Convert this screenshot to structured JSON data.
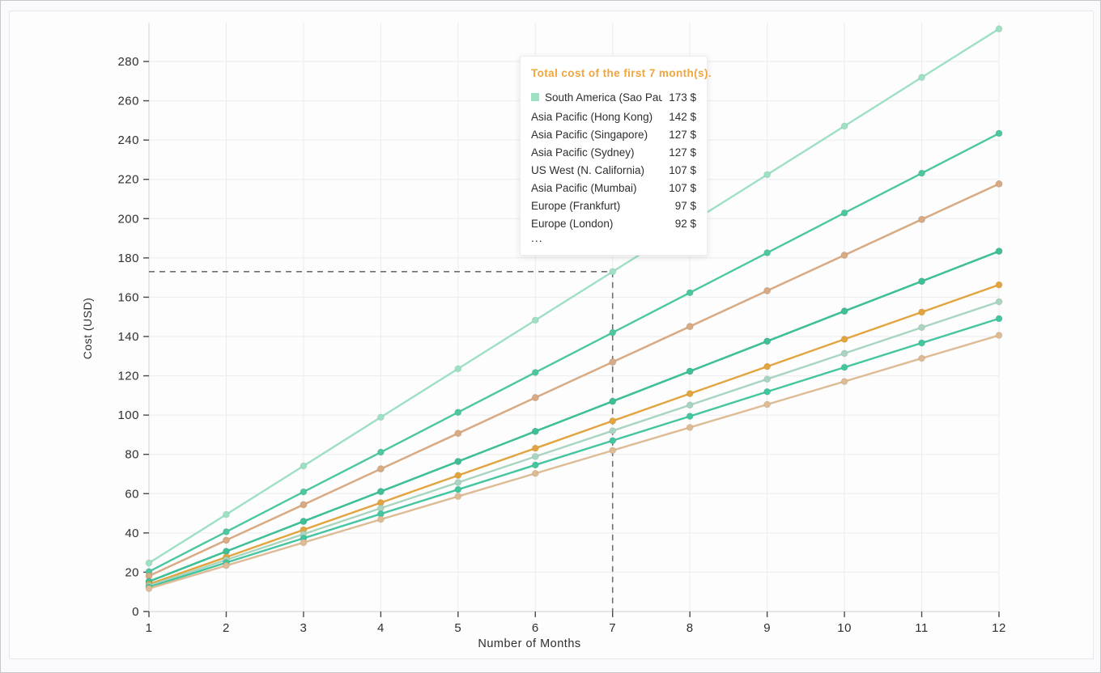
{
  "page": {
    "background": "#faf9fb",
    "card_background": "#fdfdfd",
    "grid_color": "#ececee",
    "axis_color": "#d9d9dc",
    "tick_color": "#4a4a4a",
    "label_color": "#2f2f2f",
    "dashed_line_color": "#6f6f6f"
  },
  "chart_data": {
    "type": "line",
    "title": "",
    "xlabel": "Number of Months",
    "ylabel": "Cost (USD)",
    "x": [
      1,
      2,
      3,
      4,
      5,
      6,
      7,
      8,
      9,
      10,
      11,
      12
    ],
    "xlim": [
      1,
      12
    ],
    "ylim": [
      0,
      300
    ],
    "y_ticks": [
      0,
      20,
      40,
      60,
      80,
      100,
      120,
      140,
      160,
      180,
      200,
      220,
      240,
      260,
      280
    ],
    "grid": "on",
    "legend_position": "tooltip-overlay",
    "annotation": {
      "type": "dashed-crosshair",
      "x": 7,
      "y": 173
    },
    "series": [
      {
        "name": "South America (Sao Paulo)",
        "color": "#9ee0c3",
        "values": [
          24.7,
          49.4,
          74.1,
          98.9,
          123.6,
          148.3,
          173,
          197.7,
          222.4,
          247.1,
          271.9,
          296.6
        ]
      },
      {
        "name": "Asia Pacific (Hong Kong)",
        "color": "#4cc7a0",
        "values": [
          20.3,
          40.6,
          60.9,
          81.1,
          101.4,
          121.7,
          142,
          162.3,
          182.6,
          202.9,
          223.1,
          243.4
        ]
      },
      {
        "name": "Asia Pacific (Singapore)",
        "color": "#dcae86",
        "values": [
          18.1,
          36.3,
          54.4,
          72.6,
          90.7,
          108.9,
          127,
          145.1,
          163.3,
          181.4,
          199.6,
          217.7
        ]
      },
      {
        "name": "Asia Pacific (Sydney)",
        "color": "#d9ab84",
        "values": [
          18.1,
          36.3,
          54.4,
          72.6,
          90.7,
          108.9,
          127,
          145.1,
          163.3,
          181.4,
          199.6,
          217.7
        ]
      },
      {
        "name": "US West (N. California)",
        "color": "#3dc29b",
        "values": [
          15.3,
          30.6,
          45.9,
          61.1,
          76.4,
          91.7,
          107,
          122.3,
          137.6,
          152.9,
          168.1,
          183.4
        ]
      },
      {
        "name": "Asia Pacific (Mumbai)",
        "color": "#3fbf98",
        "values": [
          15.3,
          30.6,
          45.9,
          61.1,
          76.4,
          91.7,
          107,
          122.3,
          137.6,
          152.9,
          168.1,
          183.4
        ]
      },
      {
        "name": "Europe (Frankfurt)",
        "color": "#e2a43e",
        "values": [
          13.9,
          27.7,
          41.6,
          55.4,
          69.3,
          83.1,
          97,
          110.9,
          124.7,
          138.6,
          152.4,
          166.3
        ]
      },
      {
        "name": "Europe (London)",
        "color": "#a9d5c0",
        "values": [
          13.1,
          26.3,
          39.4,
          52.6,
          65.7,
          78.9,
          92,
          105.1,
          118.3,
          131.4,
          144.6,
          157.7
        ]
      },
      {
        "name": "…",
        "color": "#43c5a0",
        "values": [
          12.4,
          24.9,
          37.3,
          49.7,
          62.1,
          74.6,
          87,
          99.4,
          111.9,
          124.3,
          136.7,
          149.1
        ]
      },
      {
        "name": "…",
        "color": "#ddbb94",
        "values": [
          11.7,
          23.4,
          35.1,
          46.9,
          58.6,
          70.3,
          82,
          93.7,
          105.4,
          117.1,
          128.9,
          140.6
        ]
      }
    ]
  },
  "tooltip": {
    "title": "Total cost of the first 7 month(s).",
    "title_color": "#f0a53e",
    "rows": [
      {
        "label": "South America (Sao Paulo)",
        "value": "173 $",
        "marker_color": "#9ee0c3",
        "highlighted": true
      },
      {
        "label": "Asia Pacific (Hong Kong)",
        "value": "142 $"
      },
      {
        "label": "Asia Pacific (Singapore)",
        "value": "127 $"
      },
      {
        "label": "Asia Pacific (Sydney)",
        "value": "127 $"
      },
      {
        "label": "US West (N. California)",
        "value": "107 $"
      },
      {
        "label": "Asia Pacific (Mumbai)",
        "value": "107 $"
      },
      {
        "label": "Europe (Frankfurt)",
        "value": "97 $"
      },
      {
        "label": "Europe (London)",
        "value": "92 $"
      }
    ],
    "ellipsis": "..."
  }
}
